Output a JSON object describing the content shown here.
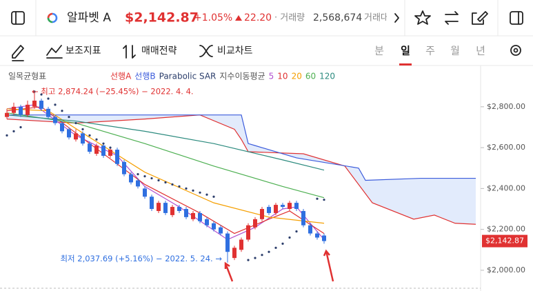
{
  "header": {
    "name": "알파벳 A",
    "price": "$2,142.87",
    "change_pct": "+1.05%",
    "change": "22.20",
    "volume_label": "· 거래량",
    "volume": "2,568,674",
    "more": "거래대"
  },
  "toolbar": {
    "indicators": "보조지표",
    "strategy": "매매전략",
    "compare": "비교차트",
    "periods": [
      "분",
      "일",
      "주",
      "월",
      "년"
    ],
    "active_period": 1
  },
  "chart_data": {
    "type": "candlestick",
    "ichimoku_label": "일목균형표",
    "ema_label": "지수이동평균",
    "ylim": [
      1912,
      2985
    ],
    "yticks": [
      {
        "value": 2000,
        "label": "$2,000.00"
      },
      {
        "value": 2200,
        "label": "$2,200.00"
      },
      {
        "value": 2400,
        "label": "$2,400.00"
      },
      {
        "value": 2600,
        "label": "$2,600.00"
      },
      {
        "value": 2800,
        "label": "$2,800.00"
      }
    ],
    "last_price": 2142.87,
    "last_price_label": "$2,142.87",
    "annotations": [
      {
        "text": "← 최고 2,874.24 (−25.45%) − 2022. 4. 4.",
        "value": 2874.24,
        "index": 4,
        "color": "#e03131"
      },
      {
        "text": "최저 2,037.69 (+5.16%) − 2022. 5. 24. →",
        "value": 2037.69,
        "index": 32,
        "color": "#2f6fe0"
      }
    ],
    "up_color": "#e03131",
    "down_color": "#2f6fe0",
    "open": [
      2750,
      2770,
      2800,
      2760,
      2800,
      2830,
      2790,
      2750,
      2720,
      2690,
      2640,
      2670,
      2620,
      2570,
      2610,
      2560,
      2590,
      2530,
      2470,
      2440,
      2400,
      2360,
      2290,
      2330,
      2270,
      2310,
      2300,
      2250,
      2280,
      2250,
      2230,
      2210,
      2180,
      2060,
      2100,
      2150,
      2210,
      2250,
      2310,
      2280,
      2320,
      2300,
      2330,
      2290,
      2220,
      2180,
      2170
    ],
    "high": [
      2790,
      2820,
      2810,
      2830,
      2874.24,
      2840,
      2800,
      2760,
      2730,
      2700,
      2690,
      2680,
      2630,
      2620,
      2620,
      2600,
      2600,
      2540,
      2480,
      2450,
      2410,
      2370,
      2340,
      2340,
      2320,
      2320,
      2310,
      2290,
      2290,
      2260,
      2240,
      2220,
      2190,
      2120,
      2160,
      2230,
      2260,
      2310,
      2320,
      2330,
      2330,
      2340,
      2340,
      2300,
      2230,
      2190,
      2180
    ],
    "low": [
      2740,
      2760,
      2750,
      2750,
      2790,
      2780,
      2740,
      2710,
      2670,
      2640,
      2630,
      2610,
      2570,
      2560,
      2550,
      2550,
      2510,
      2460,
      2420,
      2400,
      2350,
      2290,
      2280,
      2270,
      2260,
      2280,
      2250,
      2240,
      2230,
      2210,
      2190,
      2170,
      2037.69,
      2050,
      2090,
      2140,
      2200,
      2240,
      2270,
      2270,
      2300,
      2290,
      2290,
      2210,
      2170,
      2150,
      2130
    ],
    "close": [
      2770,
      2800,
      2760,
      2810,
      2830,
      2790,
      2750,
      2720,
      2680,
      2650,
      2670,
      2620,
      2580,
      2610,
      2560,
      2590,
      2520,
      2470,
      2430,
      2410,
      2360,
      2300,
      2330,
      2280,
      2310,
      2290,
      2260,
      2280,
      2240,
      2220,
      2200,
      2180,
      2090,
      2110,
      2150,
      2220,
      2250,
      2300,
      2280,
      2320,
      2310,
      2330,
      2300,
      2220,
      2180,
      2160,
      2142.87
    ],
    "cloud_color": "#dbe6fb",
    "series": [
      {
        "name": "선행A",
        "color": "#e03131",
        "kind": "line",
        "x": [
          0,
          10,
          20,
          28,
          33,
          34,
          35,
          43,
          49,
          53,
          59,
          62,
          65,
          68
        ],
        "values": [
          2740,
          2720,
          2740,
          2760,
          2690,
          2640,
          2580,
          2570,
          2510,
          2330,
          2250,
          2270,
          2230,
          2225
        ]
      },
      {
        "name": "선행B",
        "color": "#3b5bdb",
        "kind": "line",
        "x": [
          0,
          34,
          35,
          36,
          42,
          51,
          52,
          60,
          68
        ],
        "values": [
          2760,
          2760,
          2620,
          2610,
          2550,
          2500,
          2440,
          2450,
          2450
        ]
      },
      {
        "name": "Parabolic SAR",
        "color": "#2c3e6b",
        "kind": "dots",
        "x": [
          0,
          1,
          2,
          4,
          5,
          6,
          7,
          8,
          9,
          10,
          11,
          12,
          13,
          14,
          15,
          19,
          20,
          21,
          22,
          23,
          24,
          25,
          26,
          27,
          28,
          29,
          30,
          35,
          36,
          37,
          38,
          39,
          40,
          41,
          42,
          45,
          46
        ],
        "values": [
          2660,
          2680,
          2700,
          2874,
          2860,
          2840,
          2810,
          2780,
          2750,
          2720,
          2690,
          2660,
          2640,
          2620,
          2600,
          2470,
          2460,
          2450,
          2440,
          2430,
          2420,
          2410,
          2400,
          2390,
          2380,
          2370,
          2360,
          2050,
          2060,
          2075,
          2090,
          2110,
          2130,
          2160,
          2190,
          2350,
          2345
        ]
      },
      {
        "name": "5",
        "color": "#b04fd0",
        "kind": "line",
        "x": [
          0,
          4,
          10,
          16,
          20,
          25,
          32,
          36,
          40,
          42,
          46
        ],
        "values": [
          2790,
          2810,
          2660,
          2560,
          2410,
          2310,
          2150,
          2210,
          2300,
          2310,
          2150
        ]
      },
      {
        "name": "10",
        "color": "#e03131",
        "kind": "line",
        "x": [
          0,
          5,
          12,
          20,
          28,
          33,
          38,
          41,
          46
        ],
        "values": [
          2780,
          2800,
          2620,
          2420,
          2280,
          2180,
          2250,
          2290,
          2180
        ]
      },
      {
        "name": "20",
        "color": "#f59f00",
        "kind": "line",
        "x": [
          0,
          6,
          12,
          20,
          30,
          38,
          46
        ],
        "values": [
          2790,
          2780,
          2650,
          2480,
          2330,
          2260,
          2230
        ]
      },
      {
        "name": "60",
        "color": "#4caf50",
        "kind": "line",
        "x": [
          0,
          10,
          20,
          30,
          40,
          46
        ],
        "values": [
          2770,
          2720,
          2620,
          2510,
          2410,
          2355
        ]
      },
      {
        "name": "120",
        "color": "#2b8a7e",
        "kind": "line",
        "x": [
          0,
          10,
          20,
          30,
          40,
          46
        ],
        "values": [
          2760,
          2730,
          2680,
          2620,
          2540,
          2490
        ]
      }
    ]
  }
}
